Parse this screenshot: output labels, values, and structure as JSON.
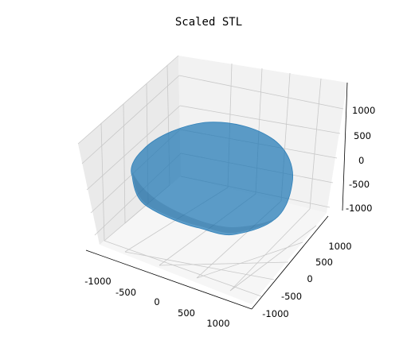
{
  "chart_data": {
    "type": "surface3d",
    "title": "Scaled STL",
    "xlabel": "",
    "ylabel": "",
    "zlabel": "",
    "x_ticks": [
      "-1000",
      "-500",
      "0",
      "500",
      "1000"
    ],
    "y_ticks": [
      "-1000",
      "-500",
      "0",
      "500",
      "1000"
    ],
    "z_ticks": [
      "-1000",
      "-500",
      "0",
      "500",
      "1000"
    ],
    "xlim": [
      -1250,
      1250
    ],
    "ylim": [
      -1250,
      1250
    ],
    "zlim": [
      -1250,
      1250
    ],
    "grid": true,
    "legend": "none",
    "surface_color": "#1f77b4",
    "surface_alpha": 0.7
  }
}
